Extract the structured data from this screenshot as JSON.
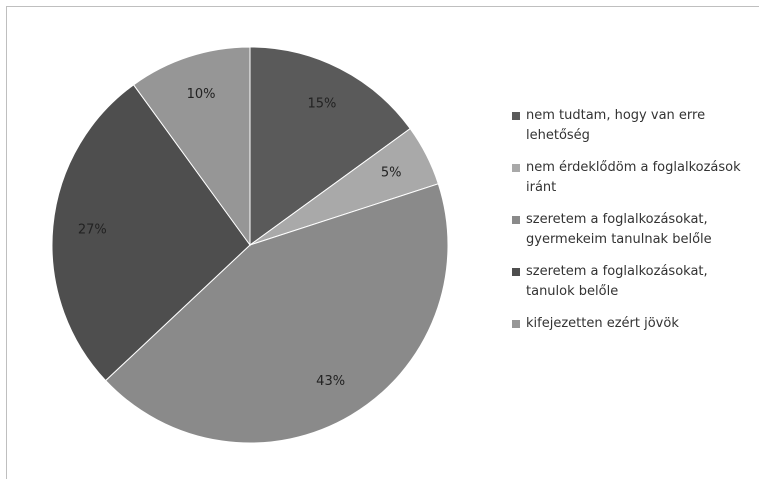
{
  "chart_data": {
    "type": "pie",
    "categories": [
      "nem tudtam, hogy van erre lehetőség",
      "nem érdeklődöm a foglalkozások iránt",
      "szeretem a foglalkozásokat, gyermekeim tanulnak belőle",
      "szeretem a foglalkozásokat, tanulok belőle",
      "kifejezetten ezért jövök"
    ],
    "values": [
      15,
      5,
      43,
      27,
      10
    ],
    "value_labels": [
      "15%",
      "5%",
      "43%",
      "27%",
      "10%"
    ],
    "colors": [
      "#5a5a5a",
      "#a9a9a9",
      "#8a8a8a",
      "#4e4e4e",
      "#969696"
    ]
  }
}
